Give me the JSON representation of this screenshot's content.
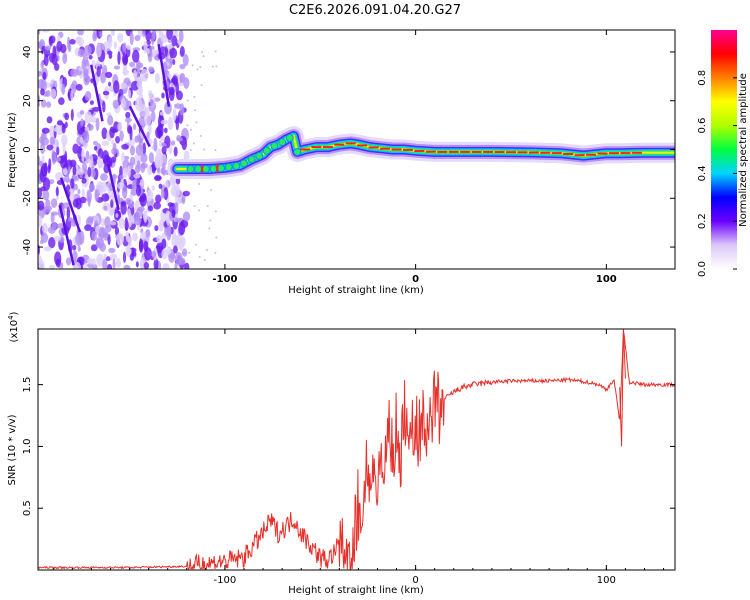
{
  "title": "C2E6.2026.091.04.20.G27",
  "chart_data": [
    {
      "type": "heatmap",
      "xlabel": "Height of straight line (km)",
      "ylabel": "Frequency (Hz)",
      "xlim": [
        -198,
        136
      ],
      "ylim": [
        -49,
        49
      ],
      "xticks": [
        -100,
        0,
        100
      ],
      "yticks": [
        -40,
        -20,
        0,
        20,
        40
      ],
      "ridge_x": [
        -125,
        -117,
        -108,
        -100,
        -92,
        -86,
        -80,
        -76,
        -72,
        -68,
        -64,
        -62,
        -58,
        -52,
        -46,
        -40,
        -34,
        -30,
        -24,
        -18,
        -12,
        -6,
        0,
        10,
        20,
        40,
        60,
        76,
        82,
        88,
        94,
        100,
        108,
        120,
        136
      ],
      "ridge_freq": [
        -8,
        -8,
        -8,
        -7.5,
        -6.5,
        -4,
        -2,
        1,
        2,
        4,
        5.5,
        -1,
        0,
        1,
        1,
        2,
        2.5,
        2,
        1,
        0.5,
        0,
        0,
        -0.5,
        -1,
        -1,
        -1,
        -1.2,
        -1.5,
        -2,
        -2.5,
        -2,
        -1.5,
        -1.5,
        -1.3,
        -1.3
      ],
      "noise_region_x": [
        -198,
        -120
      ],
      "colorbar": {
        "label": "Normalized spectral amplitude",
        "range": [
          0,
          1
        ],
        "ticks": [
          0.0,
          0.2,
          0.4,
          0.6,
          0.8
        ],
        "colors": [
          "#ffffff",
          "#dcc8f8",
          "#6a00ff",
          "#0000ff",
          "#00d4ff",
          "#00ff40",
          "#b0ff00",
          "#ffff00",
          "#ff8000",
          "#ff0000",
          "#ff0090"
        ]
      }
    },
    {
      "type": "line",
      "xlabel": "Height of straight line (km)",
      "ylabel": "SNR (10 * v/v)",
      "y_multiplier": "(x10",
      "y_multiplier_exp": "4",
      "y_multiplier_close": ")",
      "xlim": [
        -198,
        136
      ],
      "ylim": [
        0,
        1.95
      ],
      "xticks": [
        -100,
        0,
        100
      ],
      "yticks": [
        0.5,
        1.0,
        1.5
      ],
      "series": [
        {
          "name": "SNR",
          "color": "#e8302a",
          "x": [
            -198,
            -150,
            -120,
            -110,
            -100,
            -90,
            -85,
            -80,
            -76,
            -72,
            -68,
            -64,
            -60,
            -55,
            -50,
            -46,
            -42,
            -38,
            -34,
            -30,
            -28,
            -26,
            -24,
            -22,
            -20,
            -18,
            -16,
            -14,
            -12,
            -10,
            -8,
            -6,
            -4,
            -2,
            0,
            5,
            10,
            15,
            20,
            25,
            30,
            40,
            50,
            60,
            70,
            80,
            90,
            96,
            100,
            104,
            107,
            109,
            112,
            120,
            136
          ],
          "y": [
            0.02,
            0.02,
            0.03,
            0.05,
            0.07,
            0.1,
            0.2,
            0.3,
            0.4,
            0.3,
            0.35,
            0.42,
            0.3,
            0.2,
            0.1,
            0.08,
            0.15,
            0.3,
            0.2,
            0.6,
            0.45,
            0.9,
            0.6,
            1.0,
            0.7,
            1.1,
            0.8,
            1.2,
            0.9,
            1.25,
            0.95,
            1.3,
            1.1,
            1.2,
            1.15,
            1.25,
            1.32,
            1.38,
            1.44,
            1.48,
            1.5,
            1.52,
            1.53,
            1.53,
            1.53,
            1.54,
            1.52,
            1.5,
            1.46,
            1.54,
            1.2,
            1.95,
            1.52,
            1.5,
            1.5
          ]
        }
      ]
    }
  ]
}
